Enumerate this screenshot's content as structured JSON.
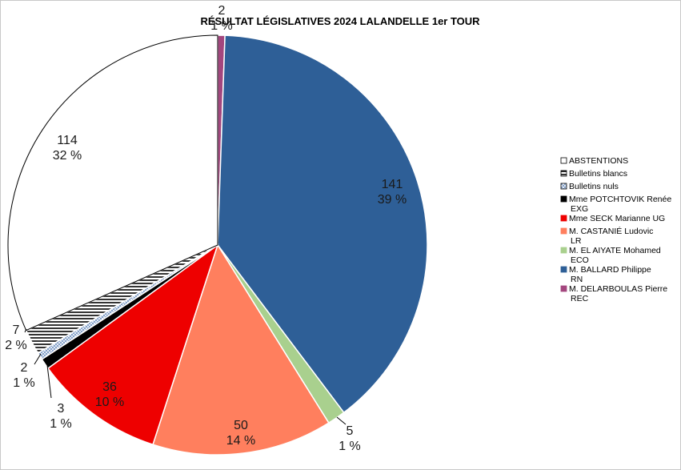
{
  "chart_data": {
    "type": "pie",
    "title": "RÉSULTAT LÉGISLATIVES 2024 LALANDELLE 1er TOUR",
    "legend_position": "right",
    "slices": [
      {
        "name": "M. DELARBOULAS Pierre REC",
        "legend_lines": [
          "M. DELARBOULAS Pierre",
          "REC"
        ],
        "value": 2,
        "percent": "1 %",
        "color": "#a3467e"
      },
      {
        "name": "M. BALLARD Philippe RN",
        "legend_lines": [
          "M. BALLARD Philippe",
          "RN"
        ],
        "value": 141,
        "percent": "39 %",
        "color": "#2e5f97"
      },
      {
        "name": "M. EL AIYATE Mohamed ECO",
        "legend_lines": [
          "M. EL AIYATE Mohamed",
          "ECO"
        ],
        "value": 5,
        "percent": "1 %",
        "color": "#a9d08e"
      },
      {
        "name": "M. CASTANIÉ Ludovic LR",
        "legend_lines": [
          "M. CASTANIÉ Ludovic",
          "LR"
        ],
        "value": 50,
        "percent": "14 %",
        "color": "#ff7f5e"
      },
      {
        "name": "Mme SECK Marianne UG",
        "legend_lines": [
          "Mme SECK Marianne UG"
        ],
        "value": 36,
        "percent": "10 %",
        "color": "#ee0000"
      },
      {
        "name": "Mme POTCHTOVIK Renée EXG",
        "legend_lines": [
          "Mme POTCHTOVIK Renée",
          "EXG"
        ],
        "value": 3,
        "percent": "1 %",
        "color": "#000000"
      },
      {
        "name": "Bulletins nuls",
        "legend_lines": [
          "Bulletins nuls"
        ],
        "value": 2,
        "percent": "1 %",
        "color": "#6c8fc0",
        "pattern": "crosshatch"
      },
      {
        "name": "Bulletins blancs",
        "legend_lines": [
          "Bulletins blancs"
        ],
        "value": 7,
        "percent": "2 %",
        "color": "#000000",
        "pattern": "horizontal"
      },
      {
        "name": "ABSTENTIONS",
        "legend_lines": [
          "ABSTENTIONS"
        ],
        "value": 114,
        "percent": "32 %",
        "color": "#ffffff"
      }
    ],
    "legend_order": [
      "ABSTENTIONS",
      "Bulletins blancs",
      "Bulletins nuls",
      "Mme POTCHTOVIK Renée EXG",
      "Mme SECK Marianne UG",
      "M. CASTANIÉ Ludovic LR",
      "M. EL AIYATE Mohamed ECO",
      "M. BALLARD Philippe RN",
      "M. DELARBOULAS Pierre REC"
    ]
  }
}
